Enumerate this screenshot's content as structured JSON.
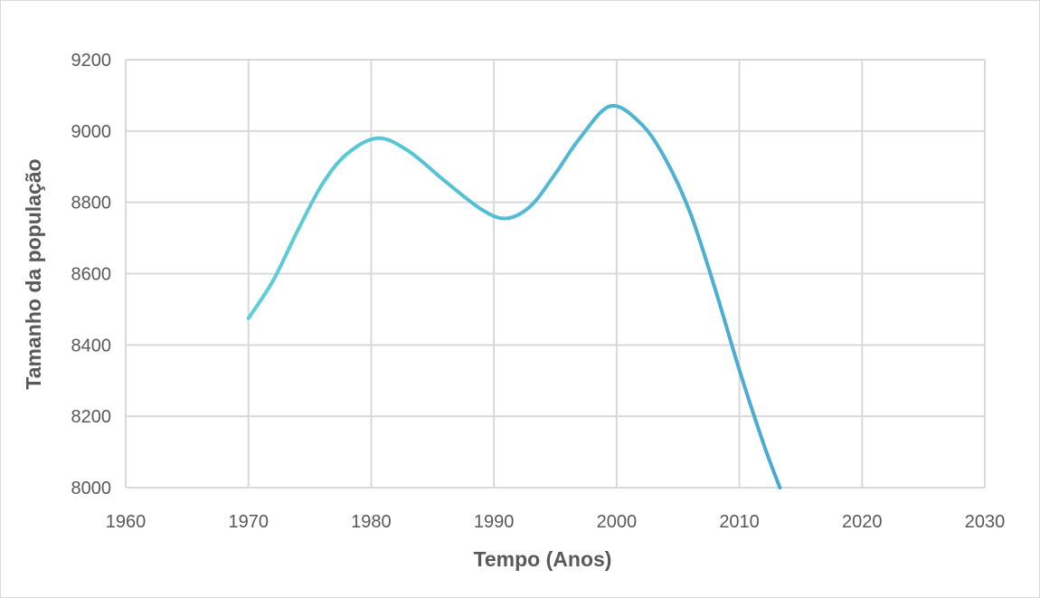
{
  "chart_data": {
    "type": "line",
    "title": "",
    "xlabel": "Tempo (Anos)",
    "ylabel": "Tamanho da população",
    "xlim": [
      1960,
      2030
    ],
    "ylim": [
      8000,
      9200
    ],
    "x_ticks": [
      1960,
      1970,
      1980,
      1990,
      2000,
      2010,
      2020,
      2030
    ],
    "y_ticks": [
      8000,
      8200,
      8400,
      8600,
      8800,
      9000,
      9200
    ],
    "x_tick_labels": [
      "1960",
      "1970",
      "1980",
      "1990",
      "2000",
      "2010",
      "2020",
      "2030"
    ],
    "y_tick_labels": [
      "8000",
      "8200",
      "8400",
      "8600",
      "8800",
      "9000",
      "9200"
    ],
    "grid": true,
    "series": [
      {
        "color_start": "#5ccfd6",
        "color_end": "#4aa9d2",
        "x": [
          1970,
          1972,
          1974,
          1976,
          1978,
          1980.5,
          1983,
          1986,
          1989,
          1991,
          1993,
          1995,
          1997,
          1999.5,
          2002,
          2004,
          2006,
          2008,
          2010,
          2012,
          2013.3
        ],
        "y": [
          8475,
          8580,
          8720,
          8850,
          8935,
          8980,
          8945,
          8860,
          8780,
          8755,
          8790,
          8880,
          8980,
          9070,
          9020,
          8920,
          8770,
          8560,
          8330,
          8120,
          8000
        ]
      }
    ]
  }
}
